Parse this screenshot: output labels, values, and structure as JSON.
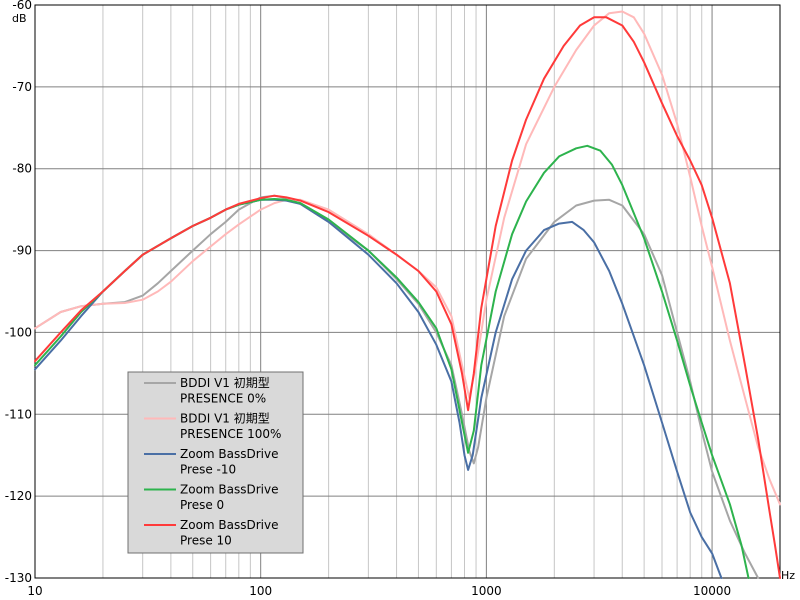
{
  "chart_data": {
    "type": "line",
    "xscale": "log",
    "xlim": [
      10,
      20000
    ],
    "ylim": [
      -130,
      -60
    ],
    "grid": true,
    "legend_position": "bottom-left",
    "xunit": "Hz",
    "yunit": "dB",
    "x_ticks": [
      {
        "value": 10,
        "label": "10"
      },
      {
        "value": 100,
        "label": "100"
      },
      {
        "value": 1000,
        "label": "1000"
      },
      {
        "value": 10000,
        "label": "10000"
      }
    ],
    "y_ticks": [
      {
        "value": -60,
        "label": "-60"
      },
      {
        "value": -70,
        "label": "-70"
      },
      {
        "value": -80,
        "label": "-80"
      },
      {
        "value": -90,
        "label": "-90"
      },
      {
        "value": -100,
        "label": "-100"
      },
      {
        "value": -110,
        "label": "-110"
      },
      {
        "value": -120,
        "label": "-120"
      },
      {
        "value": -130,
        "label": "-130"
      }
    ],
    "series": [
      {
        "name_lines": [
          "BDDI V1 初期型",
          "PRESENCE 0%"
        ],
        "color": "#a6a6a6",
        "points": [
          [
            10,
            -99.5
          ],
          [
            13,
            -97.5
          ],
          [
            16,
            -96.8
          ],
          [
            20,
            -96.5
          ],
          [
            25,
            -96.3
          ],
          [
            30,
            -95.5
          ],
          [
            35,
            -94
          ],
          [
            40,
            -92.5
          ],
          [
            50,
            -90
          ],
          [
            60,
            -88
          ],
          [
            70,
            -86.5
          ],
          [
            80,
            -85
          ],
          [
            100,
            -83.5
          ],
          [
            115,
            -83.3
          ],
          [
            130,
            -83.6
          ],
          [
            150,
            -84.3
          ],
          [
            200,
            -86.5
          ],
          [
            300,
            -90
          ],
          [
            400,
            -93.5
          ],
          [
            500,
            -96.5
          ],
          [
            600,
            -100
          ],
          [
            700,
            -104
          ],
          [
            780,
            -110
          ],
          [
            840,
            -114.5
          ],
          [
            880,
            -116
          ],
          [
            920,
            -114
          ],
          [
            1000,
            -108
          ],
          [
            1200,
            -98
          ],
          [
            1500,
            -91
          ],
          [
            2000,
            -86.5
          ],
          [
            2500,
            -84.5
          ],
          [
            3000,
            -83.9
          ],
          [
            3500,
            -83.8
          ],
          [
            4000,
            -84.5
          ],
          [
            5000,
            -88
          ],
          [
            6000,
            -93
          ],
          [
            7000,
            -100
          ],
          [
            8000,
            -106
          ],
          [
            9000,
            -112
          ],
          [
            10000,
            -117
          ],
          [
            12000,
            -123
          ],
          [
            14000,
            -127
          ],
          [
            16000,
            -130
          ]
        ]
      },
      {
        "name_lines": [
          "BDDI V1 初期型",
          "PRESENCE 100%"
        ],
        "color": "#ffb9b9",
        "points": [
          [
            10,
            -99.5
          ],
          [
            13,
            -97.5
          ],
          [
            16,
            -96.8
          ],
          [
            20,
            -96.5
          ],
          [
            25,
            -96.4
          ],
          [
            30,
            -96
          ],
          [
            35,
            -95
          ],
          [
            40,
            -93.8
          ],
          [
            50,
            -91.3
          ],
          [
            60,
            -89.5
          ],
          [
            70,
            -88
          ],
          [
            80,
            -86.8
          ],
          [
            100,
            -85
          ],
          [
            115,
            -84.2
          ],
          [
            130,
            -83.8
          ],
          [
            150,
            -83.8
          ],
          [
            200,
            -85
          ],
          [
            300,
            -88
          ],
          [
            400,
            -90.5
          ],
          [
            500,
            -92.5
          ],
          [
            600,
            -94.5
          ],
          [
            700,
            -98
          ],
          [
            780,
            -104
          ],
          [
            840,
            -108
          ],
          [
            900,
            -104
          ],
          [
            1000,
            -96
          ],
          [
            1200,
            -86
          ],
          [
            1500,
            -77
          ],
          [
            2000,
            -70
          ],
          [
            2500,
            -65.5
          ],
          [
            3000,
            -62.5
          ],
          [
            3500,
            -61
          ],
          [
            4000,
            -60.8
          ],
          [
            4500,
            -61.5
          ],
          [
            5000,
            -63.5
          ],
          [
            6000,
            -68.5
          ],
          [
            7000,
            -74.5
          ],
          [
            8000,
            -81
          ],
          [
            9000,
            -87
          ],
          [
            10000,
            -92
          ],
          [
            12000,
            -101
          ],
          [
            14000,
            -108
          ],
          [
            16000,
            -114
          ],
          [
            18000,
            -118
          ],
          [
            20000,
            -121
          ]
        ]
      },
      {
        "name_lines": [
          "Zoom BassDrive",
          "Prese -10"
        ],
        "color": "#4a6fa5",
        "points": [
          [
            10,
            -104.5
          ],
          [
            13,
            -101
          ],
          [
            16,
            -98
          ],
          [
            20,
            -95
          ],
          [
            25,
            -92.5
          ],
          [
            30,
            -90.5
          ],
          [
            40,
            -88.5
          ],
          [
            50,
            -87
          ],
          [
            60,
            -86
          ],
          [
            70,
            -85
          ],
          [
            80,
            -84.4
          ],
          [
            100,
            -83.8
          ],
          [
            115,
            -83.8
          ],
          [
            130,
            -83.9
          ],
          [
            150,
            -84.3
          ],
          [
            200,
            -86.5
          ],
          [
            300,
            -90.5
          ],
          [
            400,
            -94
          ],
          [
            500,
            -97.5
          ],
          [
            600,
            -101.5
          ],
          [
            700,
            -106
          ],
          [
            760,
            -111
          ],
          [
            800,
            -115
          ],
          [
            830,
            -116.8
          ],
          [
            870,
            -115
          ],
          [
            950,
            -108
          ],
          [
            1100,
            -100
          ],
          [
            1300,
            -93.5
          ],
          [
            1500,
            -90
          ],
          [
            1800,
            -87.5
          ],
          [
            2100,
            -86.7
          ],
          [
            2400,
            -86.5
          ],
          [
            2700,
            -87.5
          ],
          [
            3000,
            -89
          ],
          [
            3500,
            -92.5
          ],
          [
            4000,
            -96.5
          ],
          [
            5000,
            -104
          ],
          [
            6000,
            -111
          ],
          [
            7000,
            -117
          ],
          [
            8000,
            -122
          ],
          [
            9000,
            -125
          ],
          [
            10000,
            -127
          ],
          [
            11000,
            -130
          ]
        ]
      },
      {
        "name_lines": [
          "Zoom BassDrive",
          "Prese 0"
        ],
        "color": "#2db34d",
        "points": [
          [
            10,
            -104
          ],
          [
            13,
            -100.5
          ],
          [
            16,
            -97.5
          ],
          [
            20,
            -95
          ],
          [
            25,
            -92.5
          ],
          [
            30,
            -90.5
          ],
          [
            40,
            -88.5
          ],
          [
            50,
            -87
          ],
          [
            60,
            -86
          ],
          [
            70,
            -85
          ],
          [
            80,
            -84.4
          ],
          [
            100,
            -83.8
          ],
          [
            115,
            -83.7
          ],
          [
            130,
            -83.8
          ],
          [
            150,
            -84.2
          ],
          [
            200,
            -86.2
          ],
          [
            300,
            -90
          ],
          [
            400,
            -93.3
          ],
          [
            500,
            -96.3
          ],
          [
            600,
            -99.5
          ],
          [
            700,
            -104.5
          ],
          [
            780,
            -111
          ],
          [
            830,
            -114.7
          ],
          [
            880,
            -112
          ],
          [
            950,
            -104
          ],
          [
            1100,
            -95
          ],
          [
            1300,
            -88
          ],
          [
            1500,
            -84
          ],
          [
            1800,
            -80.5
          ],
          [
            2100,
            -78.5
          ],
          [
            2500,
            -77.5
          ],
          [
            2800,
            -77.2
          ],
          [
            3200,
            -77.8
          ],
          [
            3600,
            -79.5
          ],
          [
            4000,
            -82
          ],
          [
            5000,
            -88.5
          ],
          [
            6000,
            -95
          ],
          [
            7000,
            -101
          ],
          [
            8000,
            -106.5
          ],
          [
            9000,
            -111
          ],
          [
            10000,
            -115
          ],
          [
            12000,
            -121
          ],
          [
            13500,
            -126
          ],
          [
            14500,
            -130
          ]
        ]
      },
      {
        "name_lines": [
          "Zoom BassDrive",
          "Prese 10"
        ],
        "color": "#ff3a3a",
        "points": [
          [
            10,
            -103.5
          ],
          [
            13,
            -100
          ],
          [
            16,
            -97.3
          ],
          [
            20,
            -95
          ],
          [
            25,
            -92.5
          ],
          [
            30,
            -90.5
          ],
          [
            40,
            -88.5
          ],
          [
            50,
            -87
          ],
          [
            60,
            -86
          ],
          [
            70,
            -85
          ],
          [
            80,
            -84.3
          ],
          [
            100,
            -83.6
          ],
          [
            115,
            -83.3
          ],
          [
            130,
            -83.5
          ],
          [
            150,
            -83.9
          ],
          [
            200,
            -85.3
          ],
          [
            300,
            -88.2
          ],
          [
            400,
            -90.5
          ],
          [
            500,
            -92.5
          ],
          [
            600,
            -95
          ],
          [
            700,
            -99
          ],
          [
            780,
            -105
          ],
          [
            830,
            -109.5
          ],
          [
            880,
            -105
          ],
          [
            950,
            -97
          ],
          [
            1100,
            -87
          ],
          [
            1300,
            -79
          ],
          [
            1500,
            -74
          ],
          [
            1800,
            -69
          ],
          [
            2200,
            -65
          ],
          [
            2600,
            -62.5
          ],
          [
            3000,
            -61.5
          ],
          [
            3400,
            -61.5
          ],
          [
            4000,
            -62.5
          ],
          [
            4500,
            -64.5
          ],
          [
            5000,
            -67
          ],
          [
            6000,
            -72
          ],
          [
            7000,
            -76
          ],
          [
            8000,
            -79
          ],
          [
            9000,
            -82
          ],
          [
            10000,
            -86
          ],
          [
            12000,
            -94
          ],
          [
            14000,
            -104
          ],
          [
            16000,
            -113
          ],
          [
            18000,
            -122
          ],
          [
            19000,
            -126
          ],
          [
            20000,
            -130
          ]
        ]
      }
    ]
  }
}
